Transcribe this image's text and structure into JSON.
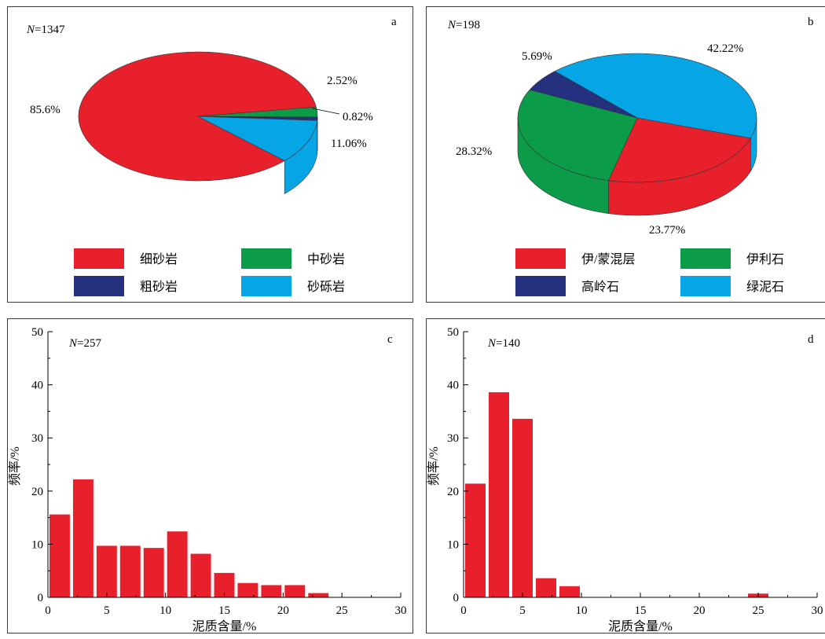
{
  "chart_data": [
    {
      "panel": "a",
      "type": "pie",
      "n_label": "N",
      "n_value": "=1347",
      "slices": [
        {
          "label": "细砂岩",
          "value": 85.6,
          "value_label": "85.6%",
          "color": "#e8202b"
        },
        {
          "label": "中砂岩",
          "value": 2.52,
          "value_label": "2.52%",
          "color": "#0c9b49"
        },
        {
          "label": "粗砂岩",
          "value": 0.82,
          "value_label": "0.82%",
          "color": "#25307f"
        },
        {
          "label": "砂砾岩",
          "value": 11.06,
          "value_label": "11.06%",
          "color": "#05a5e6"
        }
      ]
    },
    {
      "panel": "b",
      "type": "pie",
      "n_label": "N",
      "n_value": "=198",
      "slices": [
        {
          "label": "伊/蒙混层",
          "value": 23.77,
          "value_label": "23.77%",
          "color": "#e8202b"
        },
        {
          "label": "伊利石",
          "value": 28.32,
          "value_label": "28.32%",
          "color": "#0c9b49"
        },
        {
          "label": "高岭石",
          "value": 5.69,
          "value_label": "5.69%",
          "color": "#25307f"
        },
        {
          "label": "绿泥石",
          "value": 42.22,
          "value_label": "42.22%",
          "color": "#05a5e6"
        }
      ]
    },
    {
      "panel": "c",
      "type": "bar",
      "n_label": "N",
      "n_value": "=257",
      "xlabel": "泥质含量/%",
      "ylabel": "频率/%",
      "xlim": [
        0,
        30
      ],
      "ylim": [
        0,
        50
      ],
      "xticks": [
        "0",
        "5",
        "10",
        "15",
        "20",
        "25",
        "30"
      ],
      "yticks": [
        "0",
        "10",
        "20",
        "30",
        "40",
        "50"
      ],
      "bar_color": "#e8202b",
      "bin_width": 2,
      "x": [
        1,
        3,
        5,
        7,
        9,
        11,
        13,
        15,
        17,
        19,
        21,
        23
      ],
      "values": [
        15.6,
        22.2,
        9.7,
        9.7,
        9.3,
        12.4,
        8.2,
        4.6,
        2.7,
        2.3,
        2.3,
        0.8
      ]
    },
    {
      "panel": "d",
      "type": "bar",
      "n_label": "N",
      "n_value": "=140",
      "xlabel": "泥质含量/%",
      "ylabel": "频率/%",
      "xlim": [
        0,
        30
      ],
      "ylim": [
        0,
        50
      ],
      "xticks": [
        "0",
        "5",
        "10",
        "15",
        "20",
        "25",
        "30"
      ],
      "yticks": [
        "0",
        "10",
        "20",
        "30",
        "40",
        "50"
      ],
      "bar_color": "#e8202b",
      "bin_width": 2,
      "x": [
        1,
        3,
        5,
        7,
        9,
        25
      ],
      "values": [
        21.4,
        38.6,
        33.6,
        3.6,
        2.1,
        0.7
      ]
    }
  ]
}
